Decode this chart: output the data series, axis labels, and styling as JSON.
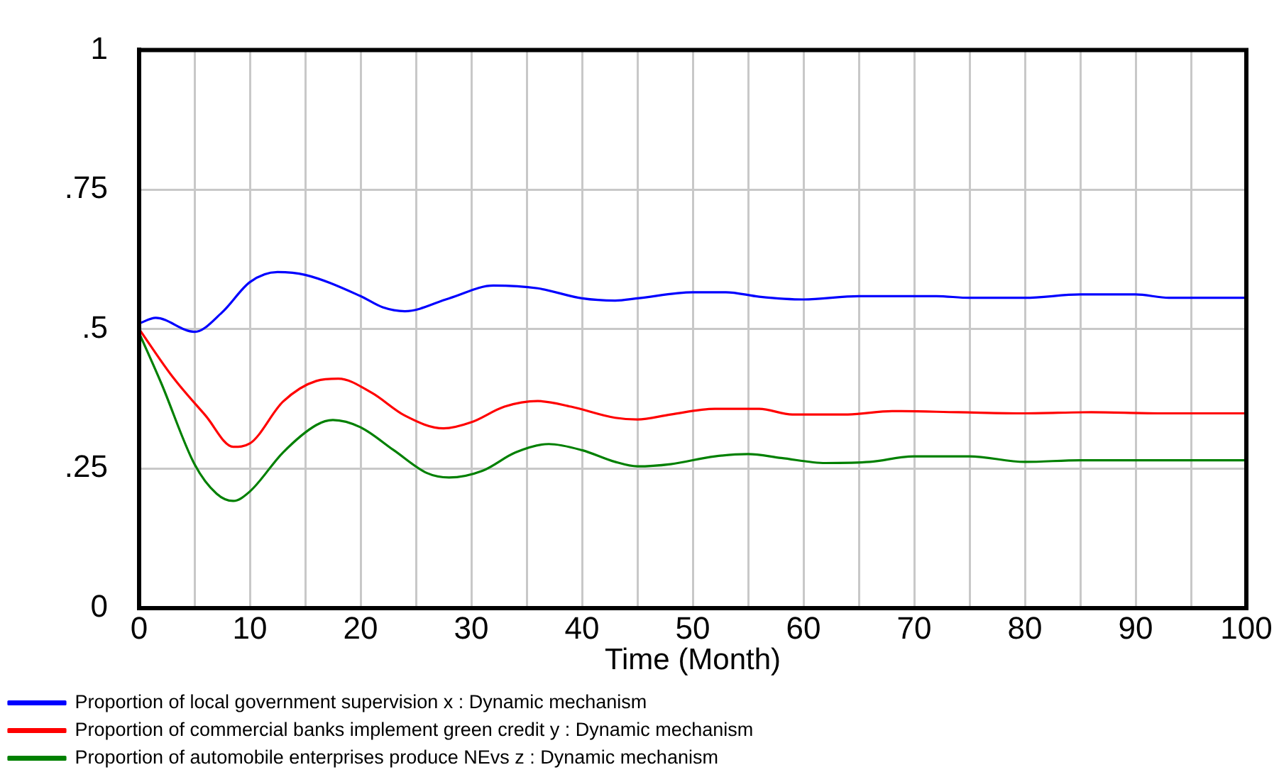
{
  "chart_data": {
    "type": "line",
    "xlabel": "Time (Month)",
    "xlim": [
      0,
      100
    ],
    "xticks": [
      0,
      {
        "value": 5,
        "label": null
      },
      10,
      {
        "value": 15,
        "label": null
      },
      20,
      {
        "value": 25,
        "label": null
      },
      30,
      {
        "value": 35,
        "label": null
      },
      40,
      {
        "value": 45,
        "label": null
      },
      50,
      {
        "value": 55,
        "label": null
      },
      60,
      {
        "value": 65,
        "label": null
      },
      70,
      {
        "value": 75,
        "label": null
      },
      80,
      {
        "value": 85,
        "label": null
      },
      90,
      {
        "value": 95,
        "label": null
      },
      100
    ],
    "ylim": [
      0,
      1
    ],
    "yticks": [
      0,
      {
        "value": 0.25,
        "label": ".25"
      },
      {
        "value": 0.5,
        "label": ".5"
      },
      {
        "value": 0.75,
        "label": ".75"
      },
      1
    ],
    "grid": true,
    "legend": "bottom",
    "marker": "none",
    "line_style": "solid",
    "series": [
      {
        "name": "Proportion of local government supervision x : Dynamic mechanism",
        "color": "#0000ff",
        "x": [
          0,
          1.5,
          5,
          7.5,
          10,
          12.5,
          15,
          20,
          22,
          24,
          28,
          32,
          36,
          40,
          43,
          45,
          50,
          53,
          56,
          60,
          65,
          72,
          75,
          80,
          85,
          90,
          93,
          100
        ],
        "values": [
          0.51,
          0.52,
          0.495,
          0.53,
          0.584,
          0.602,
          0.597,
          0.559,
          0.539,
          0.532,
          0.555,
          0.578,
          0.573,
          0.555,
          0.551,
          0.555,
          0.566,
          0.566,
          0.558,
          0.553,
          0.559,
          0.559,
          0.556,
          0.556,
          0.562,
          0.562,
          0.556,
          0.556
        ]
      },
      {
        "name": "Proportion of commercial banks implement green credit y : Dynamic mechanism",
        "color": "#ff0000",
        "x": [
          0,
          3,
          6,
          8.5,
          10,
          13,
          16,
          18,
          21,
          24,
          27.5,
          30,
          33,
          36,
          39,
          43,
          45,
          48,
          52,
          56,
          59,
          64,
          68,
          74,
          80,
          86,
          92,
          100
        ],
        "values": [
          0.5,
          0.415,
          0.345,
          0.289,
          0.295,
          0.37,
          0.407,
          0.411,
          0.386,
          0.345,
          0.322,
          0.333,
          0.361,
          0.371,
          0.361,
          0.341,
          0.338,
          0.347,
          0.357,
          0.357,
          0.347,
          0.347,
          0.353,
          0.351,
          0.349,
          0.351,
          0.349,
          0.349
        ]
      },
      {
        "name": "Proportion of automobile enterprises produce NEvs z : Dynamic mechanism",
        "color": "#008000",
        "x": [
          0,
          2,
          5,
          7,
          8.5,
          10,
          13,
          16,
          17.5,
          20,
          23,
          26,
          28,
          31,
          34,
          37,
          40,
          43,
          45,
          48,
          52,
          55,
          58,
          62,
          66,
          70,
          75,
          80,
          85,
          100
        ],
        "values": [
          0.493,
          0.403,
          0.258,
          0.205,
          0.192,
          0.209,
          0.279,
          0.328,
          0.337,
          0.324,
          0.283,
          0.242,
          0.234,
          0.246,
          0.279,
          0.294,
          0.283,
          0.262,
          0.254,
          0.258,
          0.272,
          0.276,
          0.269,
          0.26,
          0.262,
          0.272,
          0.272,
          0.262,
          0.265,
          0.265
        ]
      }
    ]
  }
}
